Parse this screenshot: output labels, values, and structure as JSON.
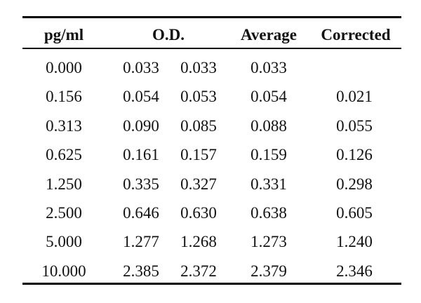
{
  "table": {
    "headers": {
      "conc": "pg/ml",
      "od": "O.D.",
      "average": "Average",
      "corrected": "Corrected"
    },
    "rows": [
      {
        "conc": "0.000",
        "od1": "0.033",
        "od2": "0.033",
        "average": "0.033",
        "corrected": ""
      },
      {
        "conc": "0.156",
        "od1": "0.054",
        "od2": "0.053",
        "average": "0.054",
        "corrected": "0.021"
      },
      {
        "conc": "0.313",
        "od1": "0.090",
        "od2": "0.085",
        "average": "0.088",
        "corrected": "0.055"
      },
      {
        "conc": "0.625",
        "od1": "0.161",
        "od2": "0.157",
        "average": "0.159",
        "corrected": "0.126"
      },
      {
        "conc": "1.250",
        "od1": "0.335",
        "od2": "0.327",
        "average": "0.331",
        "corrected": "0.298"
      },
      {
        "conc": "2.500",
        "od1": "0.646",
        "od2": "0.630",
        "average": "0.638",
        "corrected": "0.605"
      },
      {
        "conc": "5.000",
        "od1": "1.277",
        "od2": "1.268",
        "average": "1.273",
        "corrected": "1.240"
      },
      {
        "conc": "10.000",
        "od1": "2.385",
        "od2": "2.372",
        "average": "2.379",
        "corrected": "2.346"
      }
    ]
  }
}
